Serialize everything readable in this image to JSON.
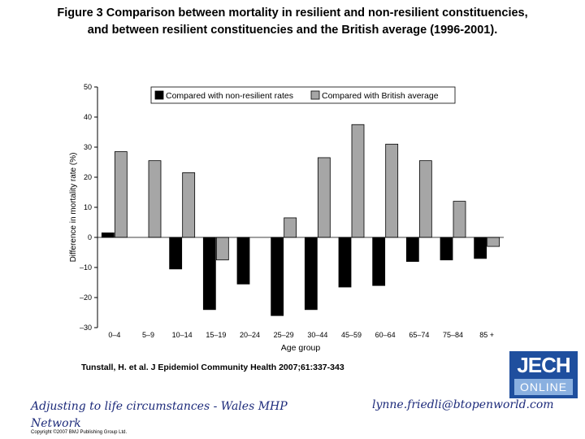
{
  "title": {
    "line1": "Figure 3 Comparison between mortality in resilient and non-resilient constituencies,",
    "line2": "and between resilient constituencies and the British average (1996-2001)."
  },
  "citation": "Tunstall, H. et al. J Epidemiol Community Health 2007;61:337-343",
  "footer": {
    "left": "Adjusting to life circumstances - Wales MHP Network",
    "right": "lynne.friedli@btopenworld.com",
    "copyright": "Copyright ©2007 BMJ Publishing Group Ltd."
  },
  "logo": {
    "top": "JECH",
    "bottom": "ONLINE"
  },
  "colors": {
    "series1": "#000000",
    "series2": "#a6a6a6",
    "axis": "#000000",
    "logo_bg": "#1f4f9e"
  },
  "chart_data": {
    "type": "bar",
    "categories": [
      "0–4",
      "5–9",
      "10–14",
      "15–19",
      "20–24",
      "25–29",
      "30–44",
      "45–59",
      "60–64",
      "65–74",
      "75–84",
      "85 +"
    ],
    "series": [
      {
        "name": "Compared with non-resilient rates",
        "values": [
          1.5,
          null,
          -10.5,
          -24,
          -15.5,
          -26,
          -24,
          -16.5,
          -16,
          -8,
          -7.5,
          -7
        ]
      },
      {
        "name": "Compared with British average",
        "values": [
          28.5,
          25.5,
          21.5,
          -7.5,
          null,
          6.5,
          26.5,
          37.5,
          31,
          25.5,
          12,
          -3
        ]
      }
    ],
    "ylabel": "Difference in mortality rate (%)",
    "xlabel": "Age group",
    "ylim": [
      -30,
      50
    ],
    "yticks": [
      -30,
      -20,
      -10,
      0,
      10,
      20,
      30,
      40,
      50
    ],
    "ytick_labels": [
      "–30",
      "–20",
      "–10",
      "0",
      "10",
      "20",
      "30",
      "40",
      "50"
    ],
    "grid": false,
    "legend_position": "top"
  }
}
